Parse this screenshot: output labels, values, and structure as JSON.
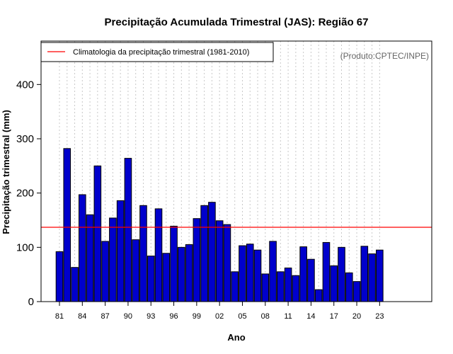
{
  "chart_data": {
    "type": "bar",
    "title": "Precipitação Acumulada Trimestral (JAS): Região 67",
    "xlabel": "Ano",
    "ylabel": "Precipitação trimestral (mm)",
    "ylim": [
      0,
      480
    ],
    "yticks": [
      0,
      100,
      200,
      300,
      400
    ],
    "xtick_labels": [
      "81",
      "84",
      "87",
      "90",
      "93",
      "96",
      "99",
      "02",
      "05",
      "08",
      "11",
      "14",
      "17",
      "20",
      "23"
    ],
    "years": [
      1981,
      1982,
      1983,
      1984,
      1985,
      1986,
      1987,
      1988,
      1989,
      1990,
      1991,
      1992,
      1993,
      1994,
      1995,
      1996,
      1997,
      1998,
      1999,
      2000,
      2001,
      2002,
      2003,
      2004,
      2005,
      2006,
      2007,
      2008,
      2009,
      2010,
      2011,
      2012,
      2013,
      2014,
      2015,
      2016,
      2017,
      2018,
      2019,
      2020,
      2021,
      2022,
      2023
    ],
    "values": [
      92,
      282,
      63,
      197,
      160,
      250,
      111,
      154,
      186,
      264,
      114,
      177,
      84,
      171,
      89,
      139,
      100,
      105,
      153,
      177,
      183,
      149,
      142,
      55,
      103,
      106,
      95,
      51,
      111,
      55,
      62,
      48,
      101,
      78,
      22,
      109,
      66,
      100,
      53,
      37,
      102,
      88,
      95
    ],
    "climatology": {
      "label": "Climatologia da precipitação trimestral (1981-2010)",
      "value": 137
    },
    "credit": "(Produto:CPTEC/INPE)",
    "grid": "vertical-dotted",
    "legend_position": "top-left",
    "colors": {
      "bar": "#0000cc",
      "bar_edge": "#000000",
      "climatology": "#ff0000",
      "grid": "#c8c8c8",
      "credit": "#666666"
    }
  }
}
